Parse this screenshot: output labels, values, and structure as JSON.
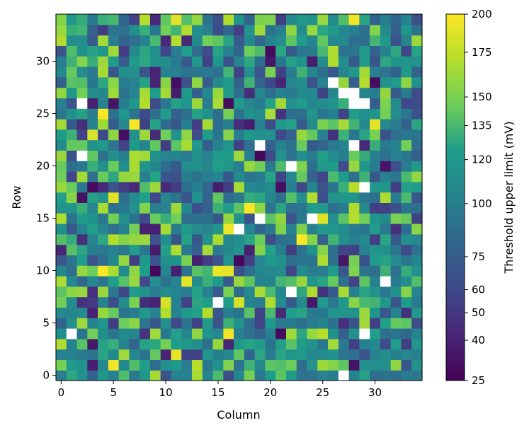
{
  "chart_data": {
    "type": "heatmap",
    "title": "",
    "xlabel": "Column",
    "ylabel": "Row",
    "colorbar_label": "Threshold upper limit (mV)",
    "rows": 35,
    "cols": 35,
    "x_ticks": [
      0,
      5,
      10,
      15,
      20,
      25,
      30
    ],
    "y_ticks": [
      0,
      5,
      10,
      15,
      20,
      25,
      30
    ],
    "colorbar_ticks": [
      25,
      40,
      50,
      60,
      75,
      100,
      120,
      135,
      150,
      175,
      200
    ],
    "value_range": [
      25,
      200
    ],
    "colormap": "viridis",
    "missing_color": "#ffffff",
    "missing_cells": [
      [
        1,
        4
      ],
      [
        2,
        21
      ],
      [
        2,
        26
      ],
      [
        19,
        22
      ],
      [
        22,
        20
      ],
      [
        28,
        22
      ],
      [
        29,
        18
      ],
      [
        28,
        26
      ],
      [
        29,
        26
      ],
      [
        27,
        27
      ],
      [
        28,
        27
      ],
      [
        26,
        28
      ],
      [
        19,
        15
      ],
      [
        24,
        15
      ],
      [
        17,
        14
      ],
      [
        15,
        7
      ],
      [
        22,
        8
      ],
      [
        31,
        9
      ],
      [
        29,
        4
      ],
      [
        27,
        0
      ]
    ],
    "bright_cells": [
      [
        11,
        34
      ],
      [
        28,
        34
      ],
      [
        4,
        25
      ],
      [
        3,
        23
      ],
      [
        7,
        24
      ],
      [
        30,
        24
      ],
      [
        5,
        17
      ],
      [
        16,
        14
      ],
      [
        4,
        10
      ],
      [
        16,
        10
      ],
      [
        12,
        9
      ],
      [
        10,
        7
      ],
      [
        17,
        7
      ],
      [
        16,
        4
      ],
      [
        11,
        2
      ],
      [
        5,
        1
      ],
      [
        15,
        10
      ],
      [
        23,
        13
      ],
      [
        25,
        15
      ],
      [
        18,
        16
      ]
    ]
  }
}
